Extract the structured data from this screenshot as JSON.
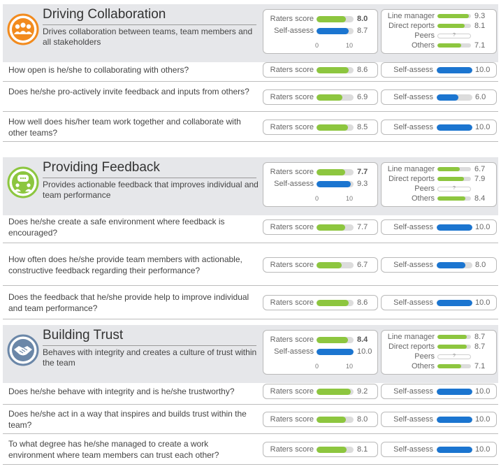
{
  "labels": {
    "raters": "Raters score",
    "self": "Self-assess",
    "scale_min": "0",
    "scale_max": "10",
    "line_manager": "Line manager",
    "direct_reports": "Direct reports",
    "peers": "Peers",
    "others": "Others",
    "not_available": "?"
  },
  "colors": {
    "green": "#8dc63f",
    "blue": "#1b75d0",
    "orange": "#f28b1e",
    "lime": "#8cc63f",
    "slate": "#6b87a8"
  },
  "sections": [
    {
      "title": "Driving Collaboration",
      "description": "Drives collaboration between teams, team members and all stakeholders",
      "icon": "team-icon",
      "raters": "8.0",
      "self": "8.7",
      "breakdown": {
        "line_manager": "9.3",
        "direct_reports": "8.1",
        "others": "7.1"
      },
      "questions": [
        {
          "text": "How open is he/she to collaborating with others?",
          "raters": "8.6",
          "self": "10.0"
        },
        {
          "text": "Does he/she pro-actively invite feedback and inputs from others?",
          "raters": "6.9",
          "self": "6.0"
        },
        {
          "text": "How well does his/her team work together and collaborate with other teams?",
          "raters": "8.5",
          "self": "10.0"
        }
      ]
    },
    {
      "title": "Providing Feedback",
      "description": "Provides actionable feedback that improves individual and team performance",
      "icon": "feedback-chat-icon",
      "raters": "7.7",
      "self": "9.3",
      "breakdown": {
        "line_manager": "6.7",
        "direct_reports": "7.9",
        "others": "8.4"
      },
      "questions": [
        {
          "text": "Does he/she create a safe environment where feedback is encouraged?",
          "raters": "7.7",
          "self": "10.0"
        },
        {
          "text": "How often does he/she provide team members with actionable, constructive feedback regarding their performance?",
          "raters": "6.7",
          "self": "8.0"
        },
        {
          "text": "Does the feedback that he/she provide help to improve individual and team performance?",
          "raters": "8.6",
          "self": "10.0"
        }
      ]
    },
    {
      "title": "Building Trust",
      "description": "Behaves with integrity and creates a culture of trust within the team",
      "icon": "handshake-icon",
      "raters": "8.4",
      "self": "10.0",
      "breakdown": {
        "line_manager": "8.7",
        "direct_reports": "8.7",
        "others": "7.1"
      },
      "questions": [
        {
          "text": "Does he/she behave with integrity and is he/she trustworthy?",
          "raters": "9.2",
          "self": "10.0"
        },
        {
          "text": "Does he/she act in a way that inspires and builds trust within the team?",
          "raters": "8.0",
          "self": "10.0"
        },
        {
          "text": "To what degree has he/she managed to create a work environment where team members can trust each other?",
          "raters": "8.1",
          "self": "10.0"
        }
      ]
    }
  ]
}
